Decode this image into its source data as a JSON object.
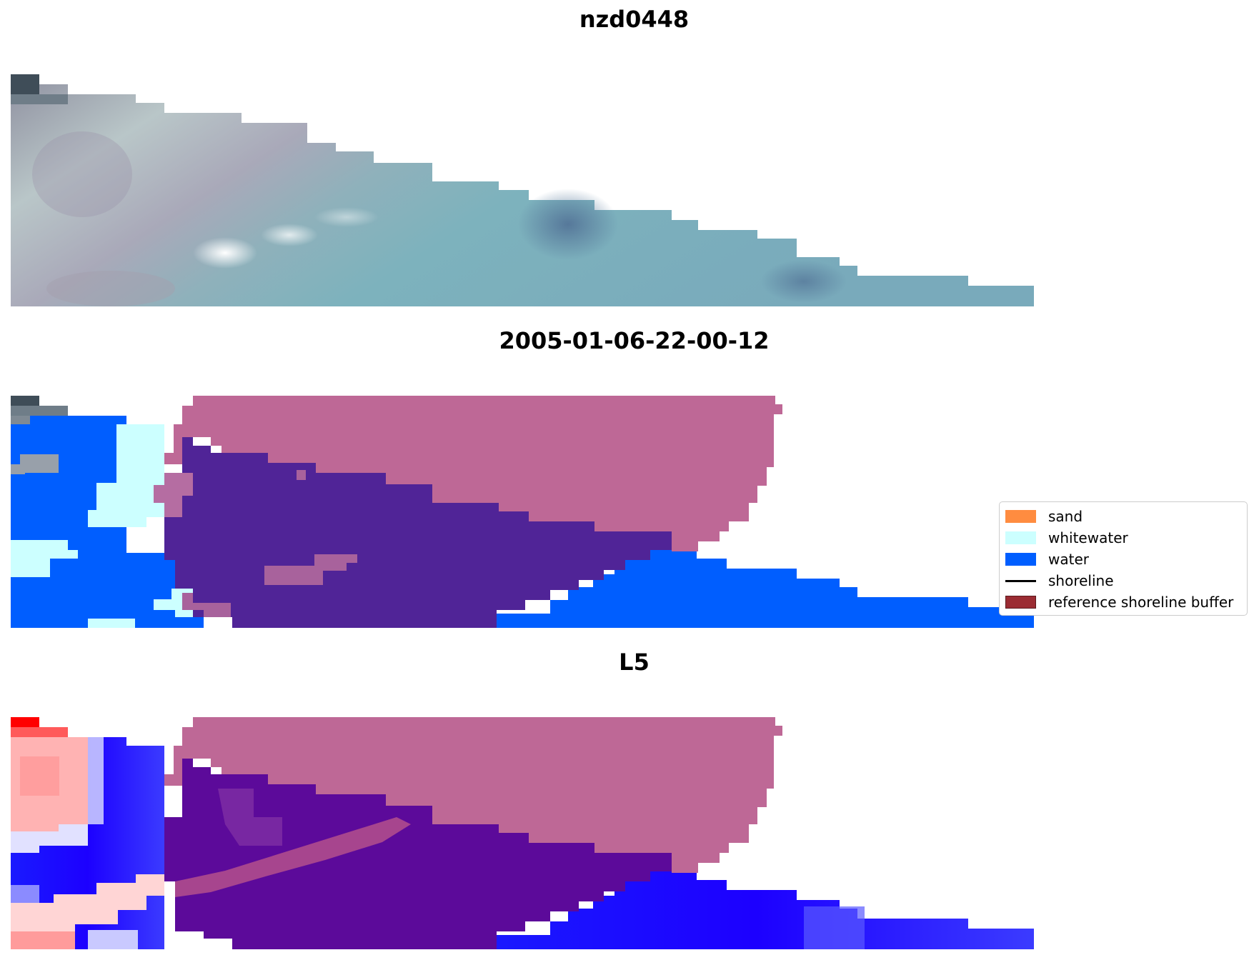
{
  "panels": [
    {
      "title": "nzd0448"
    },
    {
      "title": "2005-01-06-22-00-12"
    },
    {
      "title": "L5"
    }
  ],
  "legend": [
    {
      "label": "sand",
      "color": "#ff8c40",
      "type": "patch"
    },
    {
      "label": "whitewater",
      "color": "#ccffff",
      "type": "patch"
    },
    {
      "label": "water",
      "color": "#005eff",
      "type": "patch"
    },
    {
      "label": "shoreline",
      "color": "#000000",
      "type": "line"
    },
    {
      "label": "reference shoreline buffer",
      "color": "#9b2c33",
      "type": "patch"
    }
  ],
  "colors": {
    "buffer_overlay": "#be6896",
    "water": "#005eff",
    "whitewater": "#ccffff"
  }
}
